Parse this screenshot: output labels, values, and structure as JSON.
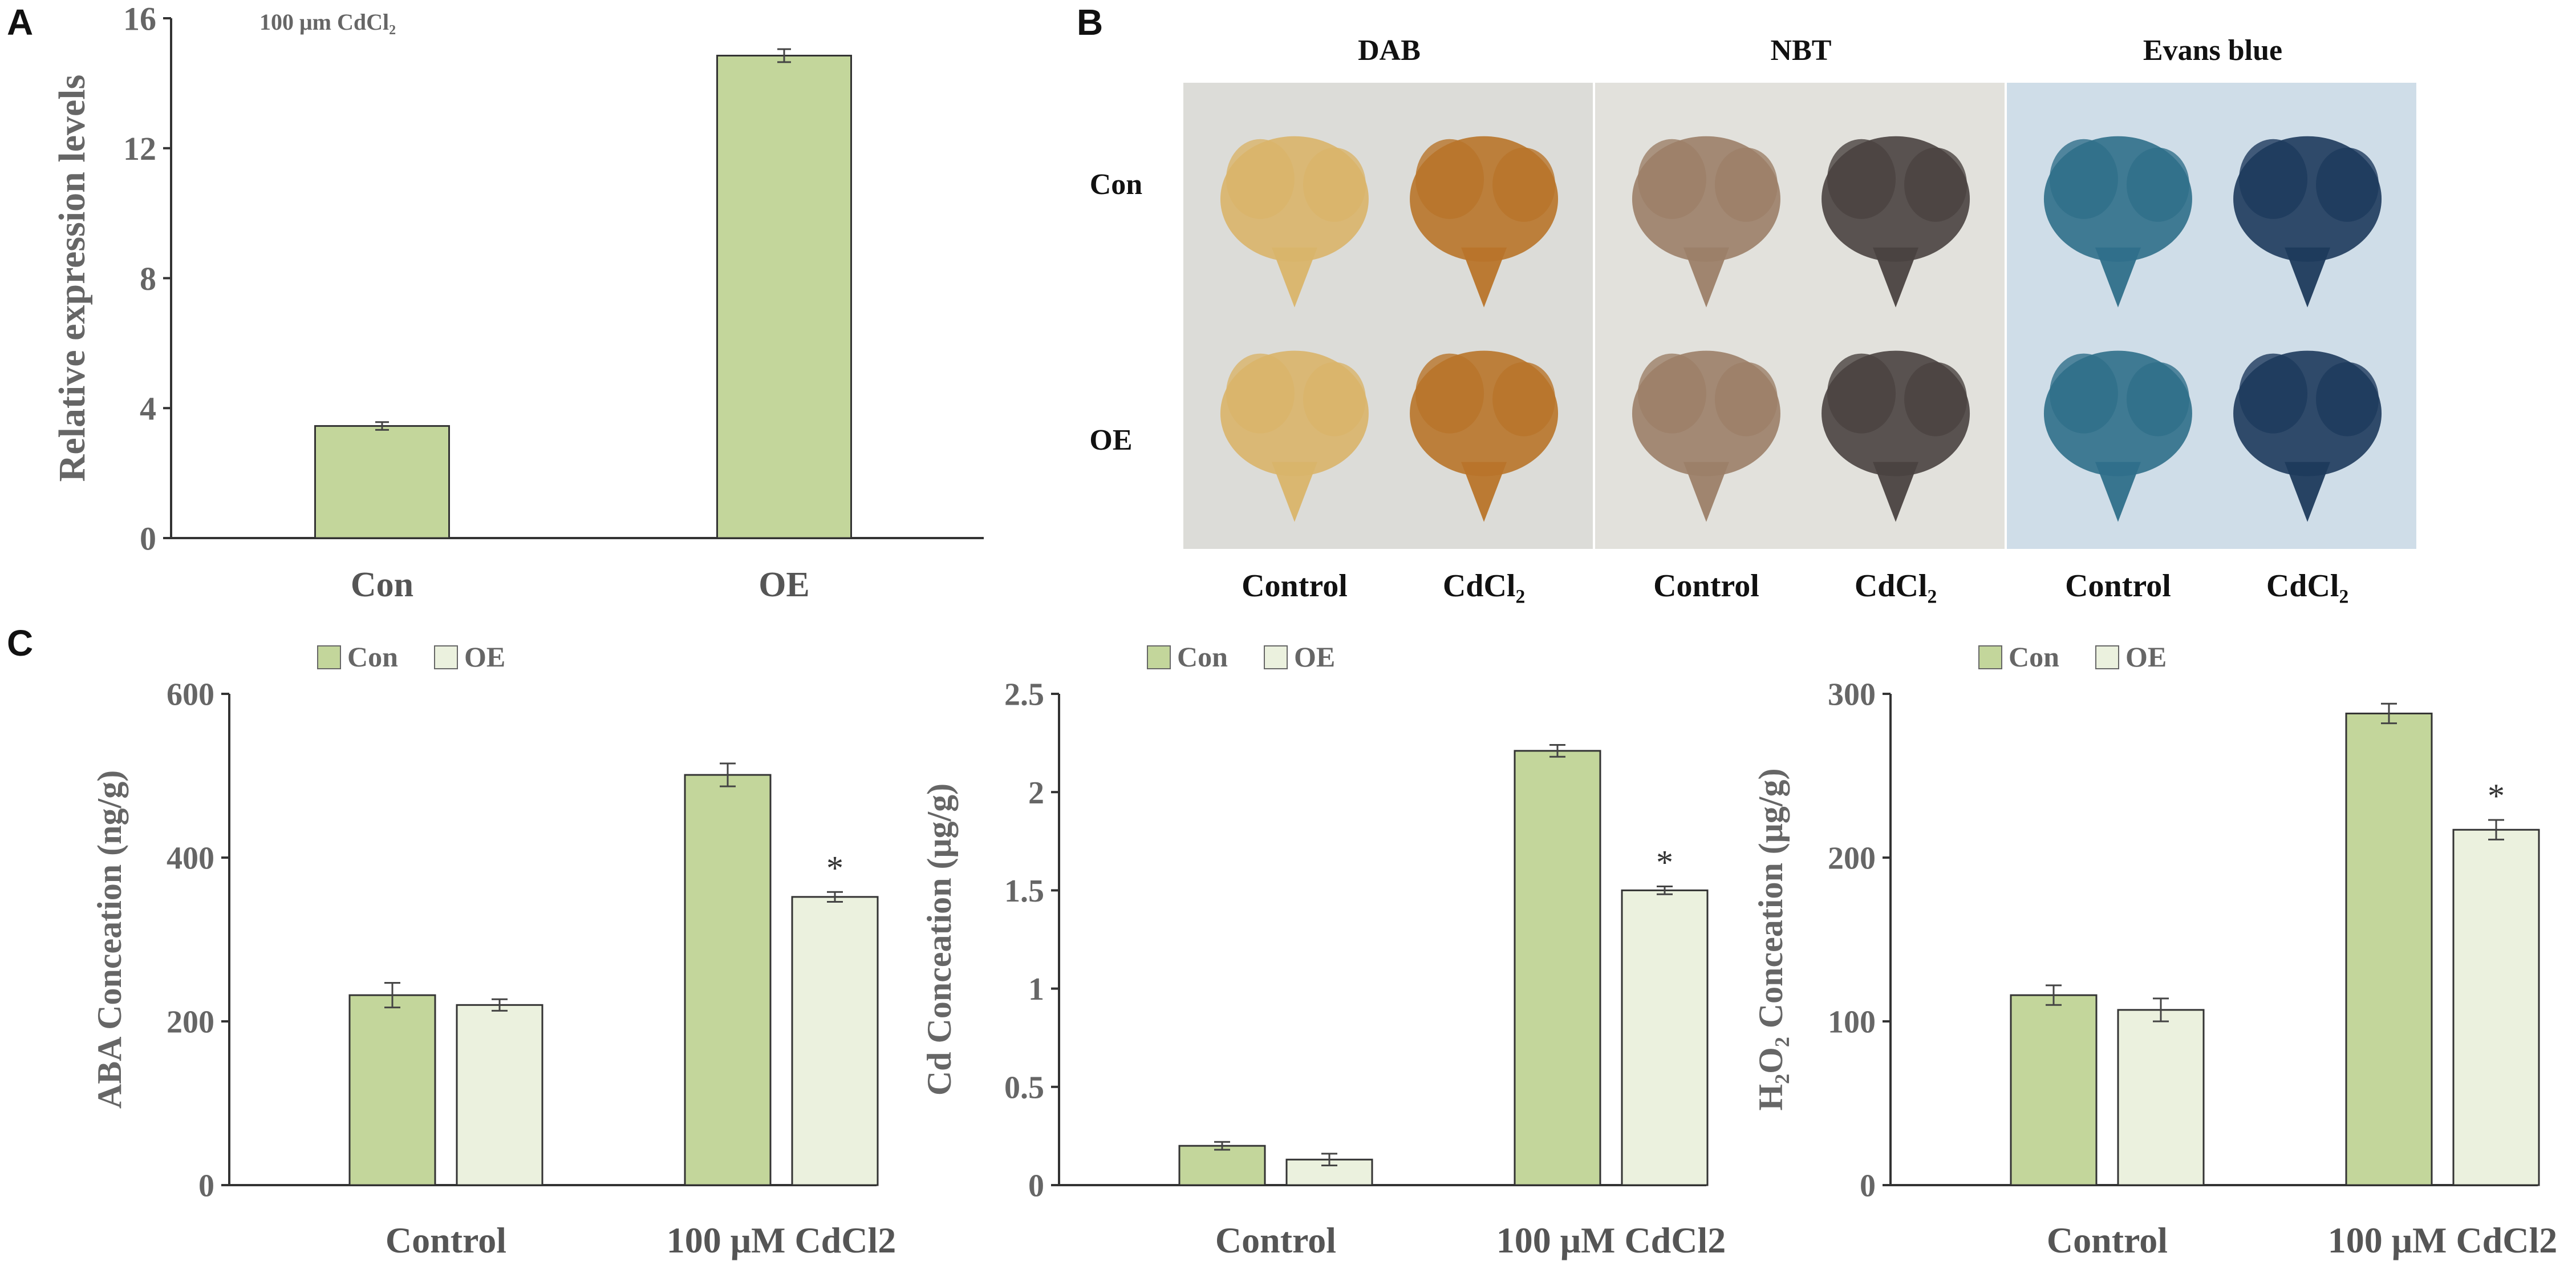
{
  "panel_labels": {
    "a": "A",
    "b": "B",
    "c": "C"
  },
  "colors": {
    "con_fill": "#c3d69b",
    "oe_fill": "#ebf1de",
    "bar_stroke": "#333333",
    "axis": "#333333",
    "text": "#666666"
  },
  "chart_data": [
    {
      "id": "A",
      "type": "bar",
      "title": "100 μm CdCl₂",
      "xlabel": "",
      "ylabel": "Relative expression levels",
      "categories": [
        "Con",
        "OE"
      ],
      "values": [
        3.45,
        14.85
      ],
      "errors": [
        0.12,
        0.2
      ],
      "ylim": [
        0,
        16
      ],
      "yticks": [
        0,
        4,
        8,
        12,
        16
      ],
      "grid": false
    },
    {
      "id": "C1",
      "type": "bar",
      "ylabel": "ABA Conceation (ng/g)",
      "categories": [
        "Control",
        "100 μM CdCl2"
      ],
      "series": [
        {
          "name": "Con",
          "values": [
            232,
            501
          ],
          "errors": [
            15,
            14
          ]
        },
        {
          "name": "OE",
          "values": [
            220,
            352
          ],
          "errors": [
            7,
            6
          ]
        }
      ],
      "annotations": [
        {
          "category": "100 μM CdCl2",
          "series": "OE",
          "text": "*"
        }
      ],
      "ylim": [
        0,
        600
      ],
      "yticks": [
        0,
        200,
        400,
        600
      ],
      "legend": "top-left",
      "grid": false
    },
    {
      "id": "C2",
      "type": "bar",
      "ylabel": "Cd Conceation (μg/g)",
      "categories": [
        "Control",
        "100 μM CdCl2"
      ],
      "series": [
        {
          "name": "Con",
          "values": [
            0.2,
            2.21
          ],
          "errors": [
            0.02,
            0.03
          ]
        },
        {
          "name": "OE",
          "values": [
            0.13,
            1.5
          ],
          "errors": [
            0.03,
            0.02
          ]
        }
      ],
      "annotations": [
        {
          "category": "100 μM CdCl2",
          "series": "OE",
          "text": "*"
        }
      ],
      "ylim": [
        0,
        2.5
      ],
      "yticks": [
        0,
        0.5,
        1,
        1.5,
        2,
        2.5
      ],
      "legend": "top-left",
      "grid": false
    },
    {
      "id": "C3",
      "type": "bar",
      "ylabel": "H₂O₂ Conceation (μg/g)",
      "categories": [
        "Control",
        "100 μM CdCl2"
      ],
      "series": [
        {
          "name": "Con",
          "values": [
            116,
            288
          ],
          "errors": [
            6,
            6
          ]
        },
        {
          "name": "OE",
          "values": [
            107,
            217
          ],
          "errors": [
            7,
            6
          ]
        }
      ],
      "annotations": [
        {
          "category": "100 μM CdCl2",
          "series": "OE",
          "text": "*"
        }
      ],
      "ylim": [
        0,
        300
      ],
      "yticks": [
        0,
        100,
        200,
        300
      ],
      "legend": "top-left",
      "grid": false
    }
  ],
  "staining": {
    "columns": [
      {
        "stain": "DAB",
        "treatments": [
          "Control",
          "CdCl₂"
        ],
        "background": "#dcdcd8",
        "control_color": "#d9b46a",
        "treated_color": "#b8742a"
      },
      {
        "stain": "NBT",
        "treatments": [
          "Control",
          "CdCl₂"
        ],
        "background": "#e2e1dc",
        "control_color": "#9c8068",
        "treated_color": "#4a4240"
      },
      {
        "stain": "Evans blue",
        "treatments": [
          "Control",
          "CdCl₂"
        ],
        "background": "#cfdde8",
        "control_color": "#2f6f8a",
        "treated_color": "#1d3a5c"
      }
    ],
    "rows": [
      "Con",
      "OE"
    ]
  }
}
